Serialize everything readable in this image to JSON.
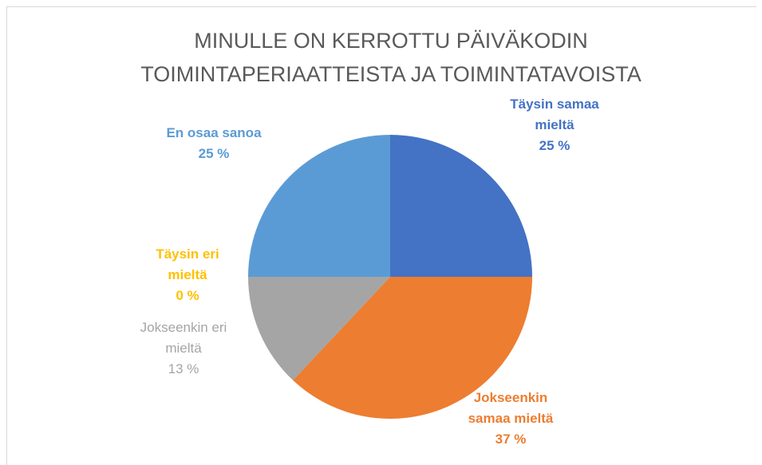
{
  "chart_data": {
    "type": "pie",
    "title": "MINULLE ON KERROTTU PÄIVÄKODIN TOIMINTAPERIAATTEISTA JA TOIMINTATAVOISTA",
    "categories": [
      "Täysin samaa mieltä",
      "Jokseenkin samaa mieltä",
      "Jokseenkin eri mieltä",
      "Täysin eri mieltä",
      "En osaa sanoa"
    ],
    "values": [
      25,
      37,
      13,
      0,
      25
    ],
    "value_labels": [
      "25 %",
      "37 %",
      "13 %",
      "0 %",
      "25 %"
    ],
    "colors": [
      "#4472c4",
      "#ed7d31",
      "#a5a5a5",
      "#ffc000",
      "#5b9bd5"
    ]
  }
}
